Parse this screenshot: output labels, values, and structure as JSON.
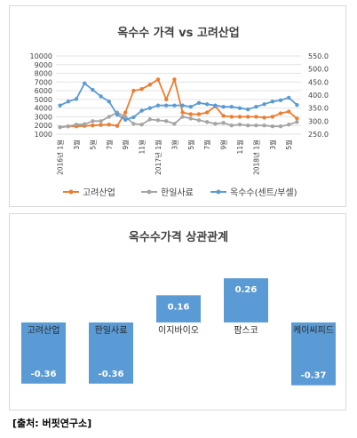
{
  "charts": [
    {
      "type": "line",
      "title": "옥수수 가격 vs 고려산업",
      "left_axis": {
        "min": 1000,
        "max": 10000,
        "step": 1000
      },
      "right_axis": {
        "min": 250,
        "max": 550,
        "step": 50,
        "tick_labels": [
          "250.0",
          "300.0",
          "350.0",
          "400.0",
          "450.0",
          "500.0",
          "550.0"
        ]
      },
      "x_labels": [
        "2016년 1월",
        "3월",
        "5월",
        "7월",
        "9월",
        "11월",
        "2017년 1월",
        "3월",
        "5월",
        "7월",
        "9월",
        "11월",
        "2018년 1월",
        "3월",
        "5월"
      ],
      "series": [
        {
          "name": "고려산업",
          "axis": "left",
          "color": "#ed7d31",
          "values": [
            1800,
            1900,
            1900,
            1950,
            2000,
            2050,
            2100,
            1950,
            3500,
            6000,
            6200,
            6700,
            7300,
            5000,
            7300,
            3500,
            3300,
            3300,
            3500,
            4200,
            3100,
            3000,
            3000,
            3000,
            3000,
            2900,
            3000,
            3400,
            3600,
            2800
          ]
        },
        {
          "name": "한일사료",
          "axis": "left",
          "color": "#a5a5a5",
          "values": [
            1800,
            1900,
            2100,
            2150,
            2500,
            2500,
            3000,
            3500,
            3000,
            2200,
            2100,
            2700,
            2600,
            2500,
            2200,
            3000,
            2800,
            2600,
            2400,
            2200,
            2300,
            2000,
            2100,
            2000,
            2000,
            2000,
            1900,
            1900,
            2100,
            2400
          ]
        },
        {
          "name": "옥수수(센트/부셀)",
          "axis": "right",
          "color": "#5b9bd5",
          "values": [
            360,
            375,
            385,
            445,
            420,
            395,
            375,
            325,
            305,
            315,
            340,
            350,
            360,
            360,
            360,
            360,
            355,
            370,
            365,
            360,
            355,
            355,
            350,
            345,
            355,
            365,
            375,
            380,
            390,
            362
          ]
        }
      ]
    },
    {
      "type": "bar",
      "title": "옥수수가격 상관관계",
      "categories": [
        "고려산업",
        "한일사료",
        "이지바이오",
        "팜스코",
        "케이씨피드"
      ],
      "values": [
        -0.36,
        -0.36,
        0.16,
        0.26,
        -0.37
      ],
      "value_labels": [
        "-0.36",
        "-0.36",
        "0.16",
        "0.26",
        "-0.37"
      ],
      "ylim": [
        -0.45,
        0.35
      ],
      "color": "#5b9bd5"
    }
  ],
  "source": "[출처: 버핏연구소]"
}
